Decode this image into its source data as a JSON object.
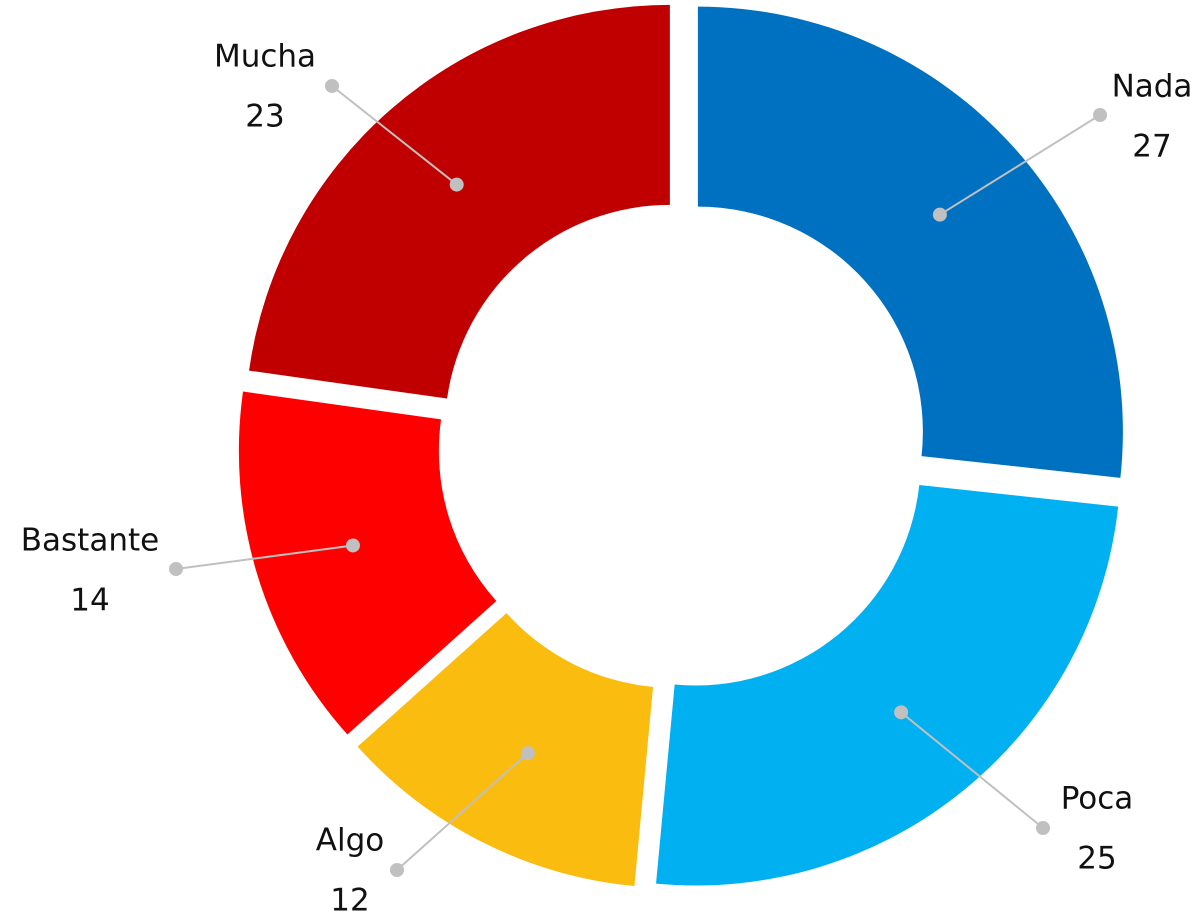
{
  "chart_data": {
    "type": "donut",
    "categories": [
      "Nada",
      "Poca",
      "Algo",
      "Bastante",
      "Mucha"
    ],
    "values": [
      27,
      25,
      12,
      14,
      23
    ],
    "colors": [
      "#0070c0",
      "#00b0f0",
      "#fbbc10",
      "#ff0000",
      "#c00000"
    ]
  }
}
